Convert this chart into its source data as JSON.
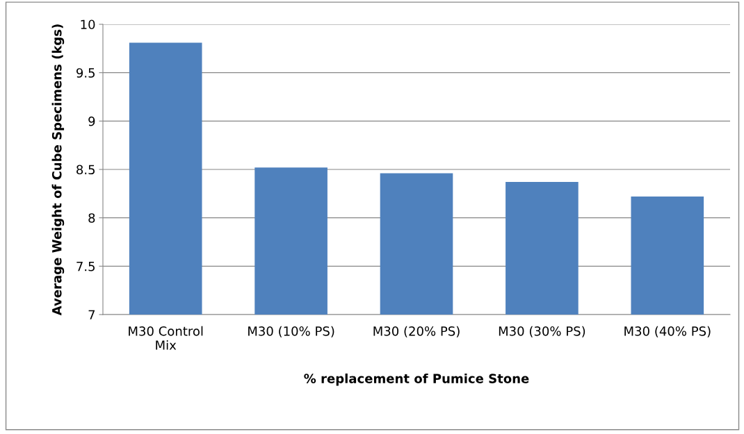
{
  "chart_data": {
    "type": "bar",
    "xlabel": "% replacement of Pumice Stone",
    "ylabel": "Average Weight of Cube Specimens (kgs)",
    "categories": [
      "M30 Control\nMix",
      "M30 (10% PS)",
      "M30 (20% PS)",
      "M30 (30% PS)",
      "M30 (40% PS)"
    ],
    "values": [
      9.81,
      8.52,
      8.46,
      8.37,
      8.22
    ],
    "color": "#4f81bd",
    "ylim": [
      7,
      10
    ],
    "yticks": [
      7,
      7.5,
      8,
      8.5,
      9,
      9.5,
      10
    ],
    "grid": "y",
    "legend": false
  }
}
